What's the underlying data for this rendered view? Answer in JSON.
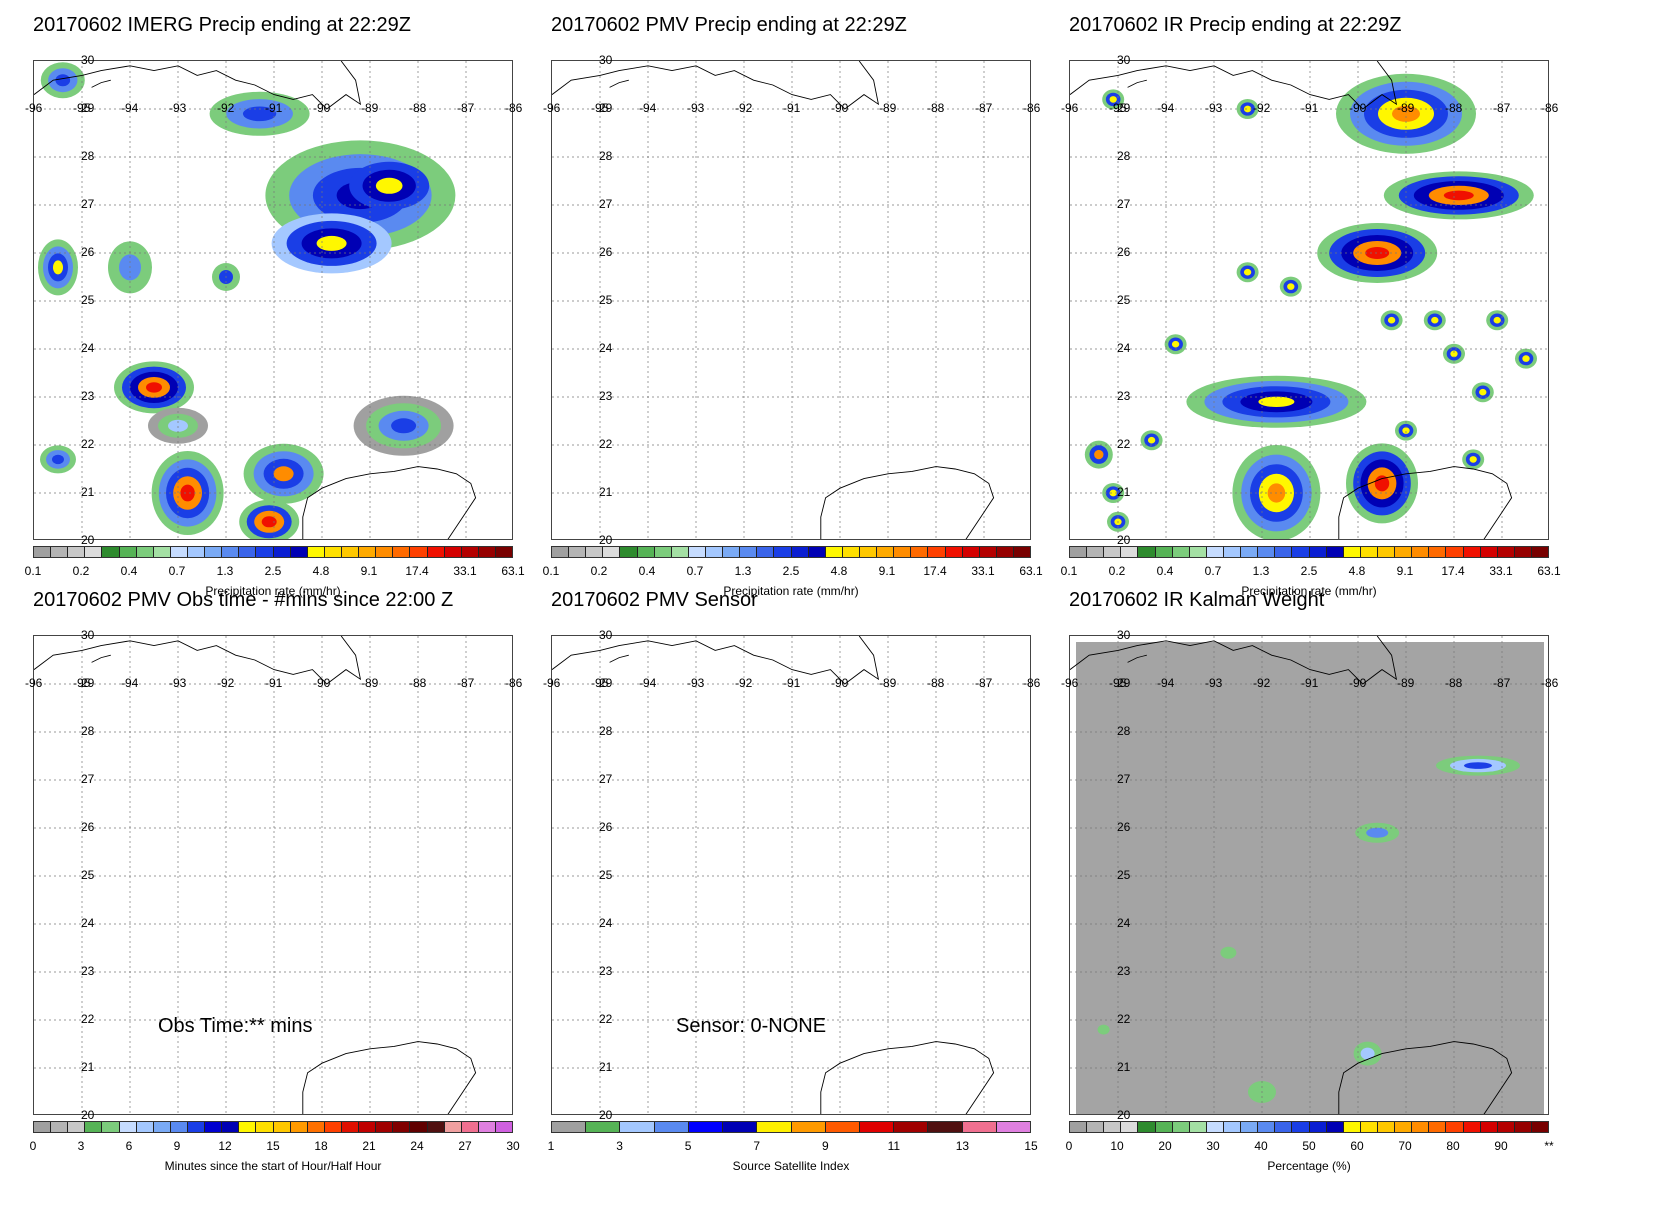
{
  "panels": [
    {
      "title": "20170602 IMERG Precip ending at 22:29Z",
      "colorbar": "precip",
      "unit": "Precipitation rate (mm/hr)",
      "fill": "imerg"
    },
    {
      "title": "20170602 PMV Precip ending at 22:29Z",
      "colorbar": "precip",
      "unit": "Precipitation rate (mm/hr)",
      "fill": "none"
    },
    {
      "title": "20170602 IR Precip ending at 22:29Z",
      "colorbar": "precip",
      "unit": "Precipitation rate (mm/hr)",
      "fill": "ir"
    },
    {
      "title": "20170602 PMV Obs time - #mins since 22:00 Z",
      "colorbar": "obs",
      "unit": "Minutes since the start of Hour/Half Hour",
      "fill": "none",
      "note": "Obs Time:** mins"
    },
    {
      "title": "20170602 PMV Sensor",
      "colorbar": "sensor",
      "unit": "Source Satellite Index",
      "fill": "none",
      "note": "Sensor:  0-NONE"
    },
    {
      "title": "20170602 IR Kalman Weight",
      "colorbar": "kalman",
      "unit": "Percentage (%)",
      "fill": "kalman"
    }
  ],
  "lon_ticks": [
    "-96",
    "-95",
    "-94",
    "-93",
    "-92",
    "-91",
    "-90",
    "-89",
    "-88",
    "-87",
    "-86"
  ],
  "lat_ticks": [
    "30",
    "29",
    "28",
    "27",
    "26",
    "25",
    "24",
    "23",
    "22",
    "21",
    "20"
  ],
  "chart_data": [
    {
      "type": "heatmap",
      "title": "20170602 IMERG Precip ending at 22:29Z",
      "xlim": [
        -96,
        -86
      ],
      "ylim": [
        20,
        30
      ],
      "colorbar_label": "Precipitation rate (mm/hr)",
      "colorbar_ticks": [
        "0.1",
        "0.2",
        "0.4",
        "0.7",
        "1.3",
        "2.5",
        "4.8",
        "9.1",
        "17.4",
        "33.1",
        "63.1"
      ],
      "grid": true
    },
    {
      "type": "heatmap",
      "title": "20170602 PMV Precip ending at 22:29Z",
      "xlim": [
        -96,
        -86
      ],
      "ylim": [
        20,
        30
      ],
      "colorbar_label": "Precipitation rate (mm/hr)",
      "colorbar_ticks": [
        "0.1",
        "0.2",
        "0.4",
        "0.7",
        "1.3",
        "2.5",
        "4.8",
        "9.1",
        "17.4",
        "33.1",
        "63.1"
      ],
      "grid": true
    },
    {
      "type": "heatmap",
      "title": "20170602 IR Precip ending at 22:29Z",
      "xlim": [
        -96,
        -86
      ],
      "ylim": [
        20,
        30
      ],
      "colorbar_label": "Precipitation rate (mm/hr)",
      "colorbar_ticks": [
        "0.1",
        "0.2",
        "0.4",
        "0.7",
        "1.3",
        "2.5",
        "4.8",
        "9.1",
        "17.4",
        "33.1",
        "63.1"
      ],
      "grid": true
    },
    {
      "type": "heatmap",
      "title": "20170602 PMV Obs time - #mins since 22:00 Z",
      "xlim": [
        -96,
        -86
      ],
      "ylim": [
        20,
        30
      ],
      "colorbar_label": "Minutes since the start of Hour/Half Hour",
      "colorbar_ticks": [
        "0",
        "3",
        "6",
        "9",
        "12",
        "15",
        "18",
        "21",
        "24",
        "27",
        "30"
      ],
      "annotation": "Obs Time:** mins",
      "grid": true
    },
    {
      "type": "heatmap",
      "title": "20170602 PMV Sensor",
      "xlim": [
        -96,
        -86
      ],
      "ylim": [
        20,
        30
      ],
      "colorbar_label": "Source Satellite Index",
      "colorbar_ticks": [
        "1",
        "3",
        "5",
        "7",
        "9",
        "11",
        "13",
        "15"
      ],
      "annotation": "Sensor:  0-NONE",
      "grid": true
    },
    {
      "type": "heatmap",
      "title": "20170602 IR Kalman Weight",
      "xlim": [
        -96,
        -86
      ],
      "ylim": [
        20,
        30
      ],
      "colorbar_label": "Percentage (%)",
      "colorbar_ticks": [
        "0",
        "10",
        "20",
        "30",
        "40",
        "50",
        "60",
        "70",
        "80",
        "90",
        "**"
      ],
      "grid": true
    }
  ],
  "colorbars": {
    "precip": {
      "colors": [
        "#a0a0a0",
        "#b4b4b4",
        "#c8c8c8",
        "#dcdcdc",
        "#2e8b2e",
        "#56b356",
        "#7ccc7c",
        "#a4e0a4",
        "#c6dcff",
        "#a4c8ff",
        "#7aaaf5",
        "#5a8af0",
        "#3a64ea",
        "#1a3ee6",
        "#0a1ed2",
        "#0000b4",
        "#fff700",
        "#ffe000",
        "#ffc800",
        "#ffaa00",
        "#ff8c00",
        "#ff6a00",
        "#ff4000",
        "#f01000",
        "#d40000",
        "#b40000",
        "#960000",
        "#780000"
      ],
      "ticks": [
        "0.1",
        "0.2",
        "0.4",
        "0.7",
        "1.3",
        "2.5",
        "4.8",
        "9.1",
        "17.4",
        "33.1",
        "63.1"
      ]
    },
    "obs": {
      "colors": [
        "#a0a0a0",
        "#b4b4b4",
        "#c8c8c8",
        "#56b356",
        "#7ccc7c",
        "#c6dcff",
        "#a4c8ff",
        "#7aaaf5",
        "#5a8af0",
        "#1a3ee6",
        "#0000d0",
        "#0000b4",
        "#fff700",
        "#ffe000",
        "#ffc800",
        "#ff9a00",
        "#ff7000",
        "#ff4000",
        "#e01000",
        "#c00000",
        "#a00000",
        "#800000",
        "#600000",
        "#501010",
        "#f0a0a0",
        "#f07090",
        "#e080e0",
        "#d060e0"
      ],
      "ticks": [
        "0",
        "3",
        "6",
        "9",
        "12",
        "15",
        "18",
        "21",
        "24",
        "27",
        "30"
      ]
    },
    "sensor": {
      "colors": [
        "#a0a0a0",
        "#56b356",
        "#a4c8ff",
        "#5a8af0",
        "#0000ff",
        "#0000b4",
        "#fff000",
        "#ff9a00",
        "#ff5a00",
        "#e00000",
        "#a00000",
        "#501010",
        "#f07090",
        "#e080e0"
      ],
      "ticks": [
        "1",
        "3",
        "5",
        "7",
        "9",
        "11",
        "13",
        "15"
      ]
    },
    "kalman": {
      "colors": [
        "#a0a0a0",
        "#b4b4b4",
        "#c8c8c8",
        "#dcdcdc",
        "#2e8b2e",
        "#56b356",
        "#7ccc7c",
        "#a4e0a4",
        "#c6dcff",
        "#a4c8ff",
        "#7aaaf5",
        "#5a8af0",
        "#3a64ea",
        "#1a3ee6",
        "#0a1ed2",
        "#0000b4",
        "#fff700",
        "#ffe000",
        "#ffc800",
        "#ffaa00",
        "#ff8c00",
        "#ff6a00",
        "#ff4000",
        "#f01000",
        "#d40000",
        "#b40000",
        "#960000",
        "#780000"
      ],
      "ticks": [
        "0",
        "10",
        "20",
        "30",
        "40",
        "50",
        "60",
        "70",
        "80",
        "90",
        "**"
      ]
    }
  }
}
